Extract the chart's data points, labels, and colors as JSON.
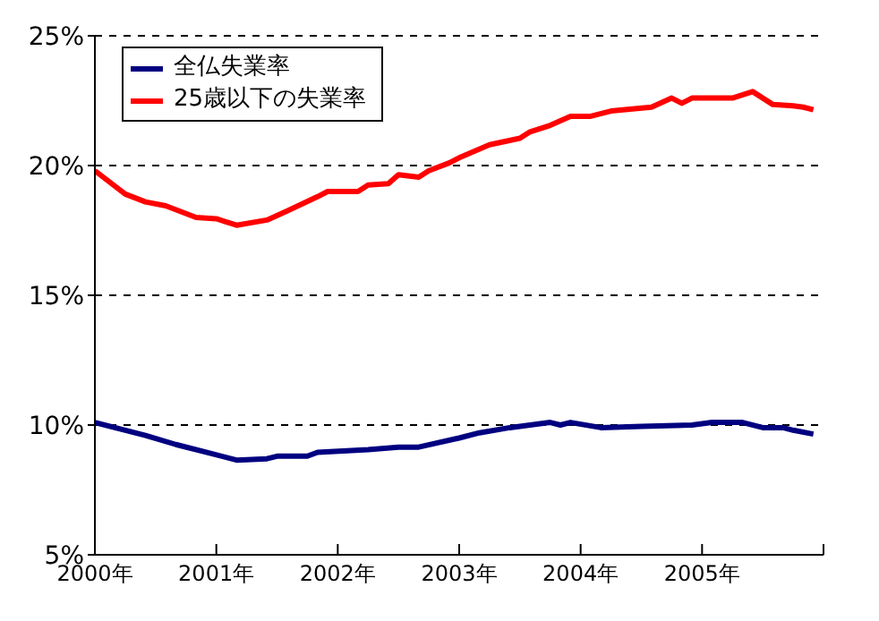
{
  "chart_data": {
    "type": "line",
    "xlim": [
      "2000-01",
      "2006-01"
    ],
    "xticks": [
      {
        "value": "2000-01",
        "label": "2000年"
      },
      {
        "value": "2001-01",
        "label": "2001年"
      },
      {
        "value": "2002-01",
        "label": "2002年"
      },
      {
        "value": "2003-01",
        "label": "2003年"
      },
      {
        "value": "2004-01",
        "label": "2004年"
      },
      {
        "value": "2005-01",
        "label": "2005年"
      },
      {
        "value": "2006-01",
        "label": null
      }
    ],
    "ylim": [
      5,
      25
    ],
    "yticks": [
      {
        "value": 5,
        "label": "5%"
      },
      {
        "value": 10,
        "label": "10%"
      },
      {
        "value": 15,
        "label": "15%"
      },
      {
        "value": 20,
        "label": "20%"
      },
      {
        "value": 25,
        "label": "25%"
      }
    ],
    "grid": "y",
    "legend": "top left",
    "marker": "none",
    "line_style": "solid",
    "series": [
      {
        "name": "全仏失業率",
        "color": "#000080",
        "x": [
          "2000-01",
          "2000-06",
          "2000-09",
          "2000-12",
          "2001-03",
          "2001-06",
          "2001-07",
          "2001-10",
          "2001-11",
          "2002-04",
          "2002-07",
          "2002-09",
          "2003-01",
          "2003-03",
          "2003-06",
          "2003-08",
          "2003-10",
          "2003-11",
          "2003-12",
          "2004-03",
          "2004-07",
          "2004-12",
          "2005-02",
          "2005-05",
          "2005-07",
          "2005-09",
          "2005-10",
          "2005-12"
        ],
        "values": [
          10.1,
          9.6,
          9.25,
          8.95,
          8.65,
          8.7,
          8.8,
          8.8,
          8.95,
          9.05,
          9.15,
          9.15,
          9.5,
          9.7,
          9.9,
          10.0,
          10.1,
          10.0,
          10.1,
          9.9,
          9.95,
          10.0,
          10.1,
          10.1,
          9.9,
          9.9,
          9.8,
          9.65
        ]
      },
      {
        "name": "25歳以下の失業率",
        "color": "#ff0000",
        "x": [
          "2000-01",
          "2000-04",
          "2000-06",
          "2000-08",
          "2000-11",
          "2001-01",
          "2001-03",
          "2001-06",
          "2001-08",
          "2001-11",
          "2001-12",
          "2002-03",
          "2002-04",
          "2002-06",
          "2002-07",
          "2002-09",
          "2002-10",
          "2002-12",
          "2003-01",
          "2003-04",
          "2003-07",
          "2003-08",
          "2003-10",
          "2003-12",
          "2004-02",
          "2004-04",
          "2004-08",
          "2004-10",
          "2004-11",
          "2004-12",
          "2005-04",
          "2005-06",
          "2005-08",
          "2005-10",
          "2005-11",
          "2005-12"
        ],
        "values": [
          19.8,
          18.9,
          18.6,
          18.45,
          18.0,
          17.95,
          17.7,
          17.9,
          18.25,
          18.8,
          19.0,
          19.0,
          19.25,
          19.3,
          19.65,
          19.55,
          19.8,
          20.1,
          20.3,
          20.8,
          21.05,
          21.3,
          21.55,
          21.9,
          21.9,
          22.1,
          22.25,
          22.6,
          22.4,
          22.6,
          22.6,
          22.85,
          22.35,
          22.3,
          22.25,
          22.15
        ]
      }
    ]
  }
}
